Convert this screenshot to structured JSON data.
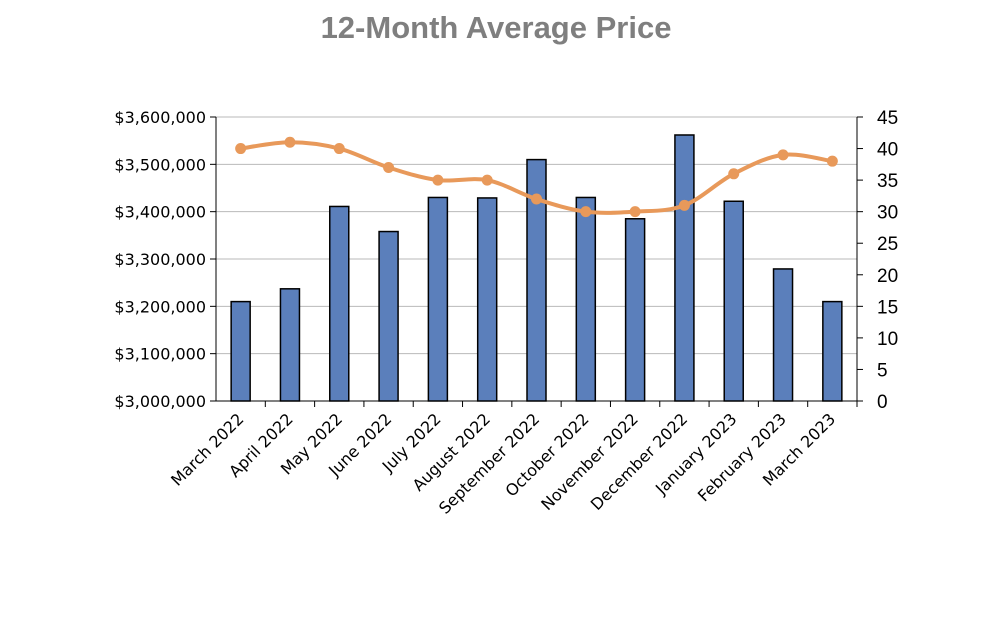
{
  "chart_data": {
    "type": "bar",
    "title": "12-Month Average Price",
    "categories": [
      "March 2022",
      "April 2022",
      "May 2022",
      "June 2022",
      "July 2022",
      "August 2022",
      "September 2022",
      "October 2022",
      "November 2022",
      "December 2022",
      "January 2023",
      "February 2023",
      "March 2023"
    ],
    "series": [
      {
        "type": "bar",
        "axis": "left",
        "color": "#5b7fbb",
        "values": [
          3210000,
          3237000,
          3411000,
          3358000,
          3430000,
          3429000,
          3510000,
          3430000,
          3385000,
          3562000,
          3422000,
          3279000,
          3210000
        ]
      },
      {
        "type": "line",
        "axis": "right",
        "color": "#e8995a",
        "values": [
          40,
          41,
          40,
          37,
          35,
          35,
          32,
          30,
          30,
          31,
          36,
          39,
          38
        ]
      }
    ],
    "ylim_left": [
      3000000,
      3600000
    ],
    "yticks_left": [
      "$3,000,000",
      "$3,100,000",
      "$3,200,000",
      "$3,300,000",
      "$3,400,000",
      "$3,500,000",
      "$3,600,000"
    ],
    "ylim_right": [
      0,
      45
    ],
    "yticks_right": [
      "0",
      "5",
      "10",
      "15",
      "20",
      "25",
      "30",
      "35",
      "40",
      "45"
    ],
    "grid": true,
    "legend": "none"
  }
}
